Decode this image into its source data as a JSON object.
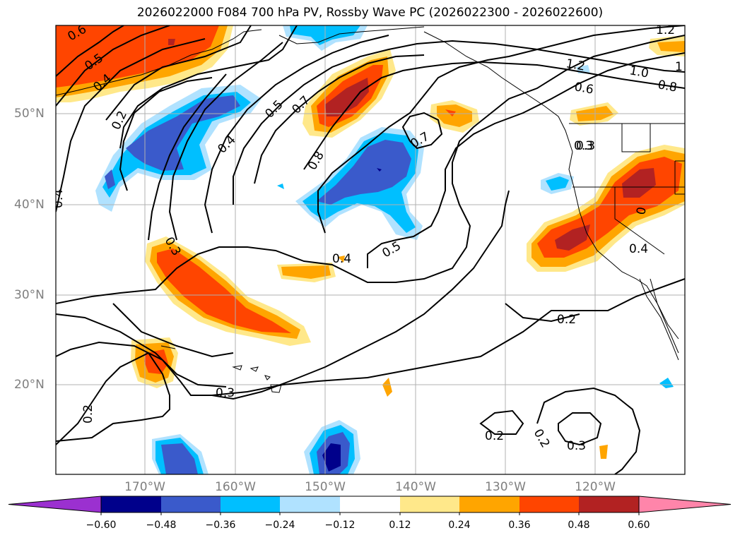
{
  "title": "2026022000 F084 700 hPa PV, Rossby Wave PC (2026022300 - 2026022600)",
  "latitude_labels": [
    "50°N",
    "40°N",
    "30°N",
    "20°N"
  ],
  "longitude_labels": [
    "170°W",
    "160°W",
    "150°W",
    "140°W",
    "130°W",
    "120°W"
  ],
  "colorbar": {
    "ticks": [
      "−0.60",
      "−0.48",
      "−0.36",
      "−0.24",
      "−0.12",
      "0.12",
      "0.24",
      "0.36",
      "0.48",
      "0.60"
    ],
    "colors": [
      "#9b30d0",
      "#00008b",
      "#3a5acb",
      "#00bfff",
      "#b0e2ff",
      "#ffffff",
      "#ffe88a",
      "#ffa500",
      "#ff4500",
      "#b22222",
      "#ff85aa"
    ]
  },
  "contour_labels": [
    "0.6",
    "0.5",
    "0.4",
    "0.2",
    "0.4",
    "0.5",
    "0.7",
    "0.8",
    "0.7",
    "0.4",
    "0.5",
    "0.3",
    "0.4",
    "0.4",
    "0.3",
    "0.2",
    "0.2",
    "0.2",
    "0.3",
    "0.2",
    "0.3",
    "1.2",
    "1.0",
    "0.8",
    "0.6",
    "0.3",
    "0",
    "1.2",
    "1"
  ],
  "colors": {
    "neg_light": "#b0e2ff",
    "neg_mid": "#00bfff",
    "neg_dark": "#3a5acb",
    "neg_darkest": "#00008b",
    "pos_light": "#ffe88a",
    "pos_mid": "#ffa500",
    "pos_dark": "#ff4500",
    "pos_darkest": "#b22222"
  }
}
